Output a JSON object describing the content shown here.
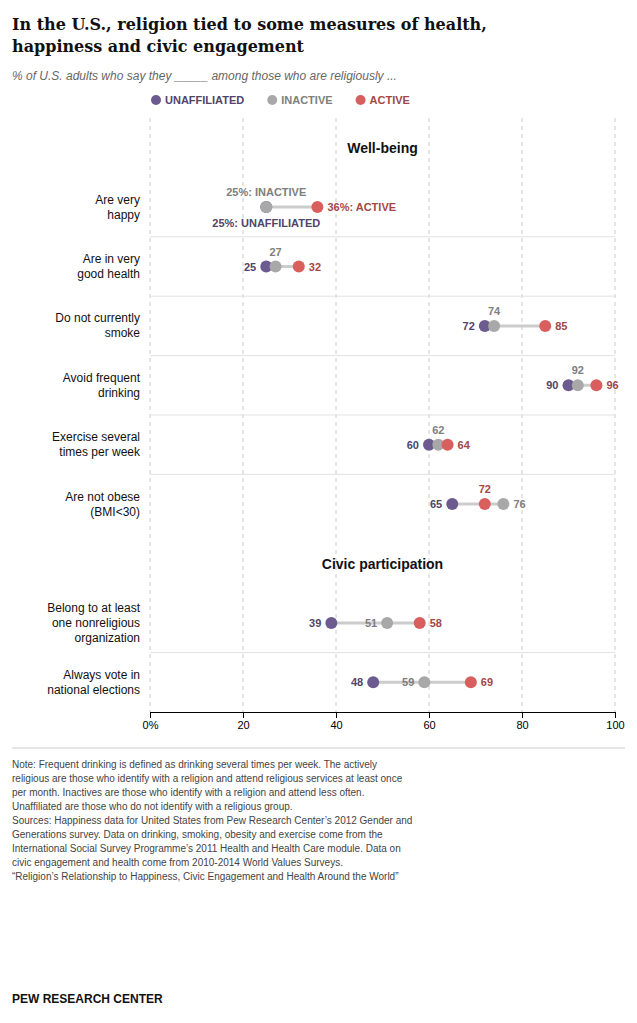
{
  "chart_data": {
    "type": "dot",
    "title": "In the U.S., religion tied to some measures of health,\nhappiness and civic engagement",
    "subtitle": "% of U.S. adults who say they _____ among those who are religiously ...",
    "categories": [
      "Are very\nhappy",
      "Are in very\ngood health",
      "Do not currently\nsmoke",
      "Avoid frequent\ndrinking",
      "Exercise several\ntimes per week",
      "Are not obese\n(BMI<30)",
      "Belong to at least\none nonreligious\norganization",
      "Always vote in\nnational elections"
    ],
    "series": [
      {
        "name": "UNAFFILIATED",
        "color": "#6b5b8e",
        "values": [
          25,
          25,
          72,
          90,
          60,
          65,
          39,
          48
        ],
        "value_labels": [
          "25%:  UNAFFILIATED",
          "25",
          "72",
          "90",
          "60",
          "65",
          "39",
          "48"
        ]
      },
      {
        "name": "INACTIVE",
        "color": "#a8a8a8",
        "values": [
          25,
          27,
          74,
          92,
          62,
          76,
          51,
          59
        ],
        "value_labels": [
          "25%: INACTIVE",
          "27",
          "74",
          "92",
          "62",
          "76",
          "51",
          "59"
        ]
      },
      {
        "name": "ACTIVE",
        "color": "#d95f5f",
        "values": [
          36,
          32,
          85,
          96,
          64,
          72,
          58,
          69
        ],
        "value_labels": [
          "36%: ACTIVE",
          "32",
          "85",
          "96",
          "64",
          "72",
          "58",
          "69"
        ]
      }
    ],
    "xlim": [
      0,
      100
    ],
    "xticks": [
      {
        "value": 0,
        "label": "0%"
      },
      20,
      40,
      60,
      80,
      100
    ],
    "grid": true,
    "legend": "top",
    "data_labels": true,
    "annotations": [
      {
        "text": "Well-being",
        "category": "Are very\nhappy"
      },
      {
        "text": "Civic participation",
        "category": "Belong to at least\none nonreligious\norganization"
      }
    ],
    "note": "Note: Frequent drinking is defined as drinking several times per week. The actively\nreligious are those who identify with a religion and attend religious services at least once\nper month. Inactives are those who identify with a religion and attend less often.\nUnaffiliated are those who do not identify with a religious group.\nSources: Happiness data for United States from Pew Research Center’s 2012 Gender and\nGenerations survey. Data on drinking, smoking, obesity and exercise come from the\nInternational Social Survey Programme’s 2011 Health and Health Care module. Data on\ncivic engagement and health come from 2010-2014 World Values Surveys.\n“Religion’s Relationship to Happiness, Civic Engagement and Health Around the World”",
    "source": "PEW RESEARCH CENTER"
  }
}
